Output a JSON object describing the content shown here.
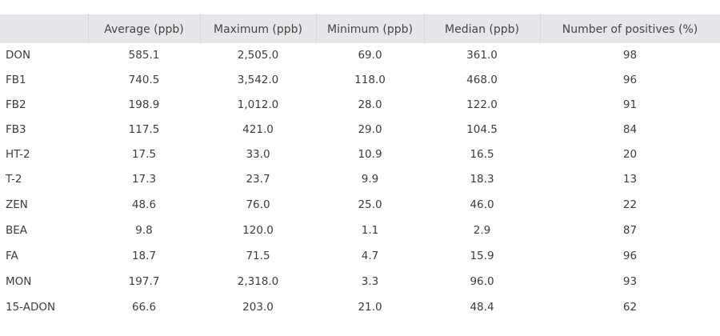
{
  "table": {
    "columns": [
      "",
      "Average (ppb)",
      "Maximum (ppb)",
      "Minimum (ppb)",
      "Median (ppb)",
      "Number of positives (%)"
    ],
    "rows": [
      [
        "DON",
        "585.1",
        "2,505.0",
        "69.0",
        "361.0",
        "98"
      ],
      [
        "FB1",
        "740.5",
        "3,542.0",
        "118.0",
        "468.0",
        "96"
      ],
      [
        "FB2",
        "198.9",
        "1,012.0",
        "28.0",
        "122.0",
        "91"
      ],
      [
        "FB3",
        "117.5",
        "421.0",
        "29.0",
        "104.5",
        "84"
      ],
      [
        "HT-2",
        "17.5",
        "33.0",
        "10.9",
        "16.5",
        "20"
      ],
      [
        "T-2",
        "17.3",
        "23.7",
        "9.9",
        "18.3",
        "13"
      ],
      [
        "ZEN",
        "48.6",
        "76.0",
        "25.0",
        "46.0",
        "22"
      ],
      [
        "BEA",
        "9.8",
        "120.0",
        "1.1",
        "2.9",
        "87"
      ],
      [
        "FA",
        "18.7",
        "71.5",
        "4.7",
        "15.9",
        "96"
      ],
      [
        "MON",
        "197.7",
        "2,318.0",
        "3.3",
        "96.0",
        "93"
      ],
      [
        "15-ADON",
        "66.6",
        "203.0",
        "21.0",
        "48.4",
        "62"
      ]
    ]
  }
}
